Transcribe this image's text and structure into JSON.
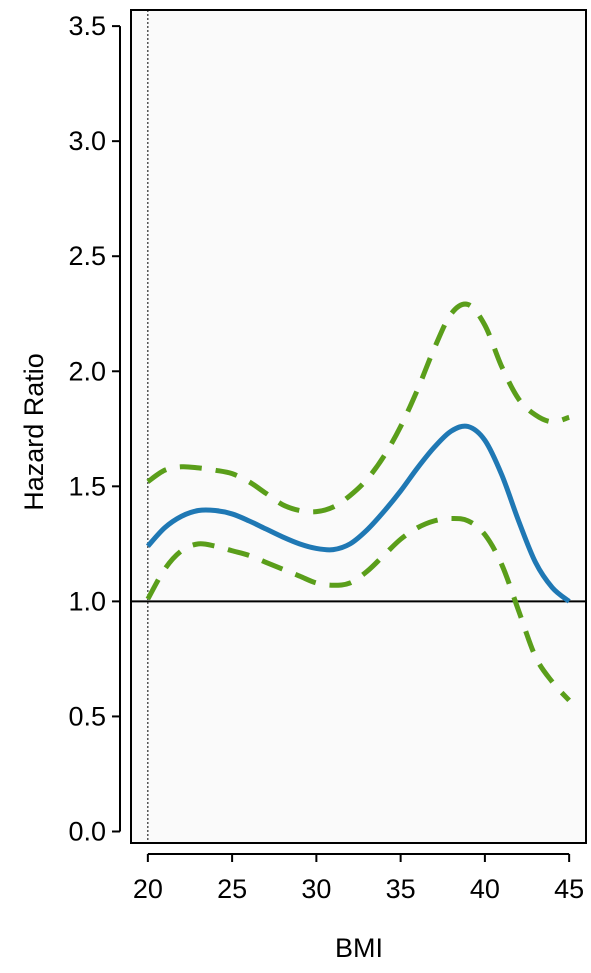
{
  "chart_data": {
    "type": "line",
    "title": "",
    "xlabel": "BMI",
    "ylabel": "Hazard Ratio",
    "xlim": [
      19,
      46
    ],
    "ylim": [
      -0.05,
      3.57
    ],
    "x_ticks": [
      20,
      25,
      30,
      35,
      40,
      45
    ],
    "x_tick_labels": [
      "20",
      "25",
      "30",
      "35",
      "40",
      "45"
    ],
    "y_ticks": [
      0,
      0.5,
      1,
      1.5,
      2,
      2.5,
      3,
      3.5
    ],
    "y_tick_labels": [
      "0.0",
      "0.5",
      "1.0",
      "1.5",
      "2.0",
      "2.5",
      "3.0",
      "3.5"
    ],
    "reference_line_y": 1.0,
    "reference_line_x": 20,
    "grid": false,
    "legend": "none",
    "plot_background": "#fafafa",
    "series": [
      {
        "role": "estimate",
        "style": "solid",
        "color": "#1f78b4",
        "x": [
          20,
          21,
          22,
          23,
          24,
          25,
          26,
          27,
          28,
          29,
          30,
          31,
          32,
          33,
          34,
          35,
          36,
          37,
          38,
          39,
          40,
          41,
          42,
          43,
          44,
          45
        ],
        "y": [
          1.24,
          1.32,
          1.37,
          1.395,
          1.395,
          1.38,
          1.35,
          1.315,
          1.28,
          1.25,
          1.23,
          1.225,
          1.25,
          1.31,
          1.39,
          1.48,
          1.58,
          1.67,
          1.74,
          1.76,
          1.7,
          1.55,
          1.35,
          1.17,
          1.06,
          1.0
        ]
      },
      {
        "role": "upper-ci",
        "style": "dashed",
        "color": "#5a9e1a",
        "x": [
          20,
          21,
          22,
          23,
          24,
          25,
          26,
          27,
          28,
          29,
          30,
          31,
          32,
          33,
          34,
          35,
          36,
          37,
          38,
          39,
          40,
          41,
          42,
          43,
          44,
          45
        ],
        "y": [
          1.52,
          1.57,
          1.585,
          1.58,
          1.57,
          1.555,
          1.52,
          1.47,
          1.42,
          1.395,
          1.39,
          1.41,
          1.46,
          1.53,
          1.63,
          1.76,
          1.92,
          2.1,
          2.25,
          2.29,
          2.2,
          2.02,
          1.88,
          1.81,
          1.78,
          1.8
        ]
      },
      {
        "role": "lower-ci",
        "style": "dashed",
        "color": "#5a9e1a",
        "x": [
          20,
          21,
          22,
          23,
          24,
          25,
          26,
          27,
          28,
          29,
          30,
          31,
          32,
          33,
          34,
          35,
          36,
          37,
          38,
          39,
          40,
          41,
          42,
          43,
          44,
          45
        ],
        "y": [
          1.01,
          1.14,
          1.22,
          1.25,
          1.24,
          1.22,
          1.2,
          1.17,
          1.14,
          1.11,
          1.08,
          1.07,
          1.08,
          1.13,
          1.2,
          1.27,
          1.32,
          1.35,
          1.36,
          1.35,
          1.29,
          1.16,
          0.96,
          0.76,
          0.65,
          0.57
        ]
      }
    ]
  }
}
